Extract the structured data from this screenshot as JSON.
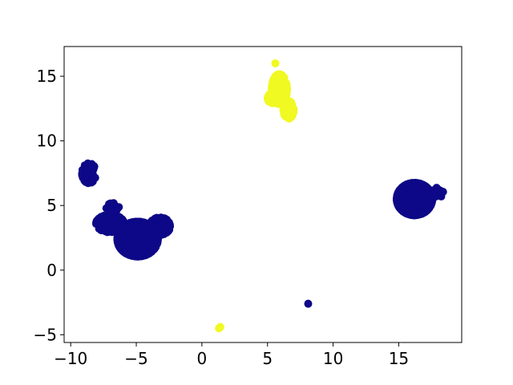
{
  "chart_data": {
    "type": "scatter",
    "title": "",
    "xlabel": "",
    "ylabel": "",
    "xlim": [
      -10.5,
      19.8
    ],
    "ylim": [
      -5.6,
      17.3
    ],
    "x_ticks": [
      -10,
      -5,
      0,
      5,
      10,
      15
    ],
    "y_ticks": [
      -5,
      0,
      5,
      10,
      15
    ],
    "x_tick_labels": [
      "−10",
      "−5",
      "0",
      "5",
      "10",
      "15"
    ],
    "y_tick_labels": [
      "−5",
      "0",
      "5",
      "10",
      "15"
    ],
    "grid": false,
    "legend": "none",
    "colors": {
      "class_0": "#0d0887",
      "class_1": "#f0f921"
    },
    "series": [
      {
        "color_key": "class_0",
        "clusters": [
          {
            "cx": -8.6,
            "cy": 7.5,
            "rx": 0.55,
            "ry": 0.8,
            "n": 50
          },
          {
            "cx": -4.9,
            "cy": 2.4,
            "rx": 1.6,
            "ry": 1.4,
            "n": 700
          },
          {
            "cx": -7.0,
            "cy": 3.6,
            "rx": 1.1,
            "ry": 0.7,
            "n": 120
          },
          {
            "cx": -3.2,
            "cy": 3.4,
            "rx": 0.8,
            "ry": 0.7,
            "n": 120
          },
          {
            "cx": -6.8,
            "cy": 4.8,
            "rx": 0.5,
            "ry": 0.4,
            "n": 30
          },
          {
            "cx": 16.2,
            "cy": 5.5,
            "rx": 1.4,
            "ry": 1.3,
            "n": 700
          },
          {
            "cx": 18.0,
            "cy": 6.0,
            "rx": 0.4,
            "ry": 0.4,
            "n": 30
          }
        ],
        "points": [
          [
            8.1,
            -2.6
          ]
        ]
      },
      {
        "color_key": "class_1",
        "clusters": [
          {
            "cx": 5.9,
            "cy": 14.0,
            "rx": 0.6,
            "ry": 1.2,
            "n": 250
          },
          {
            "cx": 6.6,
            "cy": 12.4,
            "rx": 0.4,
            "ry": 0.7,
            "n": 120
          },
          {
            "cx": 5.4,
            "cy": 13.3,
            "rx": 0.4,
            "ry": 0.4,
            "n": 60
          }
        ],
        "points": [
          [
            5.6,
            16.0
          ],
          [
            1.3,
            -4.5
          ],
          [
            1.4,
            -4.4
          ]
        ]
      }
    ]
  }
}
